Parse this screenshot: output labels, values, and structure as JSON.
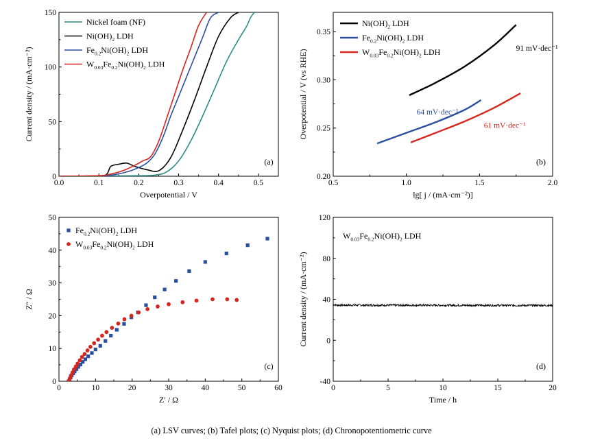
{
  "caption": "(a) LSV curves; (b) Tafel plots; (c) Nyquist plots; (d) Chronopotentiometric curve",
  "colors": {
    "nf": "#2e8b84",
    "ni": "#000000",
    "fe": "#2a4f9e",
    "w": "#d6261e"
  },
  "chart_data": [
    {
      "type": "line",
      "panel_label": "(a)",
      "xlabel": "Overpotential / V",
      "ylabel": "Current density / (mA·cm⁻²)",
      "xlim": [
        0.0,
        0.55
      ],
      "ylim": [
        0,
        150
      ],
      "xticks": [
        0.0,
        0.1,
        0.2,
        0.3,
        0.4,
        0.5
      ],
      "yticks": [
        0,
        50,
        100,
        150
      ],
      "legend_position": "top-left",
      "series": [
        {
          "name": "Nickel foam (NF)",
          "key": "nf",
          "x": [
            0.0,
            0.1,
            0.2,
            0.24,
            0.27,
            0.3,
            0.33,
            0.36,
            0.39,
            0.42,
            0.45,
            0.47,
            0.48,
            0.49
          ],
          "y": [
            0,
            0.2,
            0.5,
            1,
            4,
            14,
            32,
            55,
            80,
            105,
            125,
            137,
            145,
            150
          ]
        },
        {
          "name": "Ni(OH)2 LDH",
          "key": "ni",
          "x": [
            0.0,
            0.1,
            0.12,
            0.13,
            0.15,
            0.17,
            0.19,
            0.22,
            0.25,
            0.28,
            0.31,
            0.34,
            0.37,
            0.4,
            0.43,
            0.45
          ],
          "y": [
            0,
            0.3,
            2,
            9,
            11,
            12,
            9,
            6,
            5,
            17,
            42,
            70,
            100,
            128,
            145,
            150
          ]
        },
        {
          "name": "Fe0.2Ni(OH)2 LDH",
          "key": "fe",
          "x": [
            0.0,
            0.1,
            0.13,
            0.16,
            0.18,
            0.2,
            0.22,
            0.24,
            0.26,
            0.28,
            0.3,
            0.32,
            0.34,
            0.36,
            0.38,
            0.4
          ],
          "y": [
            0,
            0.3,
            1,
            3,
            5,
            8,
            12,
            20,
            35,
            55,
            73,
            91,
            109,
            127,
            145,
            150
          ]
        },
        {
          "name": "W0.03Fe0.2Ni(OH)2 LDH",
          "key": "w",
          "x": [
            0.0,
            0.1,
            0.13,
            0.16,
            0.19,
            0.21,
            0.23,
            0.25,
            0.27,
            0.29,
            0.31,
            0.33,
            0.35,
            0.37
          ],
          "y": [
            0,
            0.5,
            2,
            5,
            10,
            14,
            18,
            32,
            53,
            75,
            97,
            117,
            138,
            150
          ]
        }
      ]
    },
    {
      "type": "line",
      "panel_label": "(b)",
      "xlabel": "lg[ j / (mA·cm⁻²)]",
      "ylabel": "Overpotential / V (vs RHE)",
      "xlim": [
        0.5,
        2.0
      ],
      "ylim": [
        0.2,
        0.37
      ],
      "xticks": [
        0.5,
        1.0,
        1.5,
        2.0
      ],
      "yticks": [
        0.2,
        0.25,
        0.3,
        0.35
      ],
      "legend_position": "top-left",
      "series": [
        {
          "name": "Ni(OH)2 LDH",
          "key": "ni",
          "x": [
            1.02,
            1.2,
            1.4,
            1.6,
            1.75
          ],
          "y": [
            0.284,
            0.297,
            0.314,
            0.336,
            0.357
          ]
        },
        {
          "name": "Fe0.2Ni(OH)2 LDH",
          "key": "fe",
          "x": [
            0.8,
            1.0,
            1.2,
            1.4,
            1.51
          ],
          "y": [
            0.234,
            0.245,
            0.256,
            0.269,
            0.279
          ]
        },
        {
          "name": "W0.03Fe0.2Ni(OH)2 LDH",
          "key": "w",
          "x": [
            1.03,
            1.2,
            1.4,
            1.6,
            1.78
          ],
          "y": [
            0.235,
            0.245,
            0.257,
            0.271,
            0.286
          ]
        }
      ],
      "annotations": [
        {
          "text": "91 mV·dec⁻¹",
          "key": "ni",
          "x": 1.75,
          "y": 0.33
        },
        {
          "text": "64 mV·dec⁻¹",
          "key": "fe",
          "x": 1.07,
          "y": 0.264
        },
        {
          "text": "61 mV·dec⁻¹",
          "key": "w",
          "x": 1.53,
          "y": 0.25
        }
      ]
    },
    {
      "type": "scatter",
      "panel_label": "(c)",
      "xlabel": "Z′ / Ω",
      "ylabel": "Z″ / Ω",
      "xlim": [
        0,
        60
      ],
      "ylim": [
        0,
        50
      ],
      "xticks": [
        0,
        10,
        20,
        30,
        40,
        50,
        60
      ],
      "yticks": [
        0,
        10,
        20,
        30,
        40,
        50
      ],
      "legend_position": "top-left",
      "series": [
        {
          "name": "Fe0.2Ni(OH)2 LDH",
          "key": "fe",
          "marker": "square",
          "x": [
            2.6,
            2.9,
            3.2,
            3.5,
            3.9,
            4.3,
            4.8,
            5.3,
            5.9,
            6.5,
            7.2,
            8.0,
            9.0,
            10.0,
            11.3,
            12.7,
            14.2,
            15.8,
            17.8,
            19.8,
            21.6,
            23.8,
            26.2,
            28.9,
            32.0,
            35.6,
            40.0,
            45.8,
            51.6,
            57.0
          ],
          "y": [
            0.0,
            0.6,
            1.2,
            1.8,
            2.4,
            3.0,
            3.7,
            4.4,
            5.1,
            5.9,
            6.7,
            7.6,
            8.6,
            9.7,
            10.8,
            12.3,
            13.9,
            15.7,
            17.5,
            19.5,
            21.0,
            23.2,
            25.6,
            28.0,
            30.6,
            33.6,
            36.4,
            39.0,
            41.5,
            43.5
          ]
        },
        {
          "name": "W0.03Fe0.2Ni(OH)2 LDH",
          "key": "w",
          "marker": "circle",
          "x": [
            2.7,
            3.0,
            3.3,
            3.7,
            4.1,
            4.6,
            5.1,
            5.7,
            6.3,
            7.0,
            7.8,
            8.6,
            9.6,
            10.7,
            11.8,
            13.0,
            14.5,
            16.2,
            17.9,
            19.8,
            21.8,
            24.2,
            27.0,
            30.0,
            33.8,
            37.6,
            42.0,
            46.0,
            48.6
          ],
          "y": [
            0.0,
            0.9,
            1.8,
            2.7,
            3.6,
            4.5,
            5.4,
            6.4,
            7.4,
            8.3,
            9.4,
            10.5,
            11.6,
            12.7,
            13.9,
            15.0,
            16.3,
            17.6,
            18.9,
            20.0,
            21.0,
            22.0,
            22.8,
            23.5,
            24.1,
            24.6,
            25.0,
            25.0,
            24.8
          ]
        }
      ]
    },
    {
      "type": "line",
      "panel_label": "(d)",
      "xlabel": "Time / h",
      "ylabel": "Current density / (mA·cm⁻²)",
      "xlim": [
        0,
        20
      ],
      "ylim": [
        -40,
        120
      ],
      "xticks": [
        0,
        5,
        10,
        15,
        20
      ],
      "yticks": [
        -40,
        0,
        40,
        80,
        120
      ],
      "legend_position": "top-left",
      "series": [
        {
          "name": "W0.03Fe0.2Ni(OH)2 LDH",
          "key": "ni",
          "x": [
            0,
            0.3,
            20
          ],
          "y": [
            35,
            34.3,
            34.0
          ],
          "noise": 1.0
        }
      ]
    }
  ]
}
